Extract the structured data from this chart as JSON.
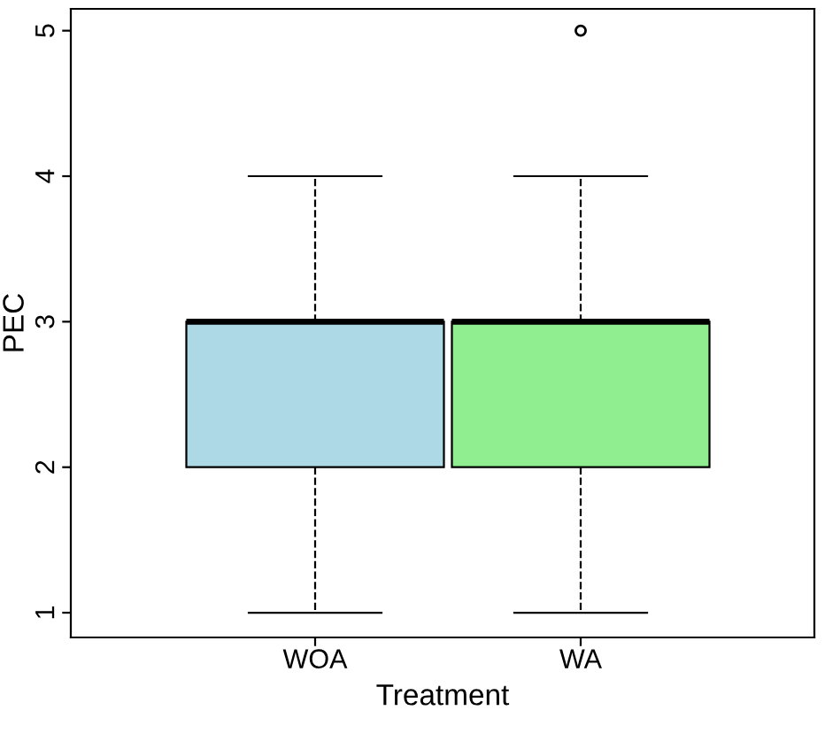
{
  "chart_data": {
    "type": "box",
    "xlabel": "Treatment",
    "ylabel": "PEC",
    "categories": [
      "WOA",
      "WA"
    ],
    "boxes": [
      {
        "low": 1,
        "q1": 2,
        "median": 3,
        "q3": 3,
        "high": 4
      },
      {
        "low": 1,
        "q1": 2,
        "median": 3,
        "q3": 3,
        "high": 4,
        "outliers": [
          5
        ]
      }
    ],
    "colors": [
      "#add8e6",
      "#90ee90"
    ],
    "ylim": [
      0.83,
      5.15
    ],
    "yticks": [
      1,
      2,
      3,
      4,
      5
    ],
    "grid": false,
    "line_style": "dashed"
  }
}
